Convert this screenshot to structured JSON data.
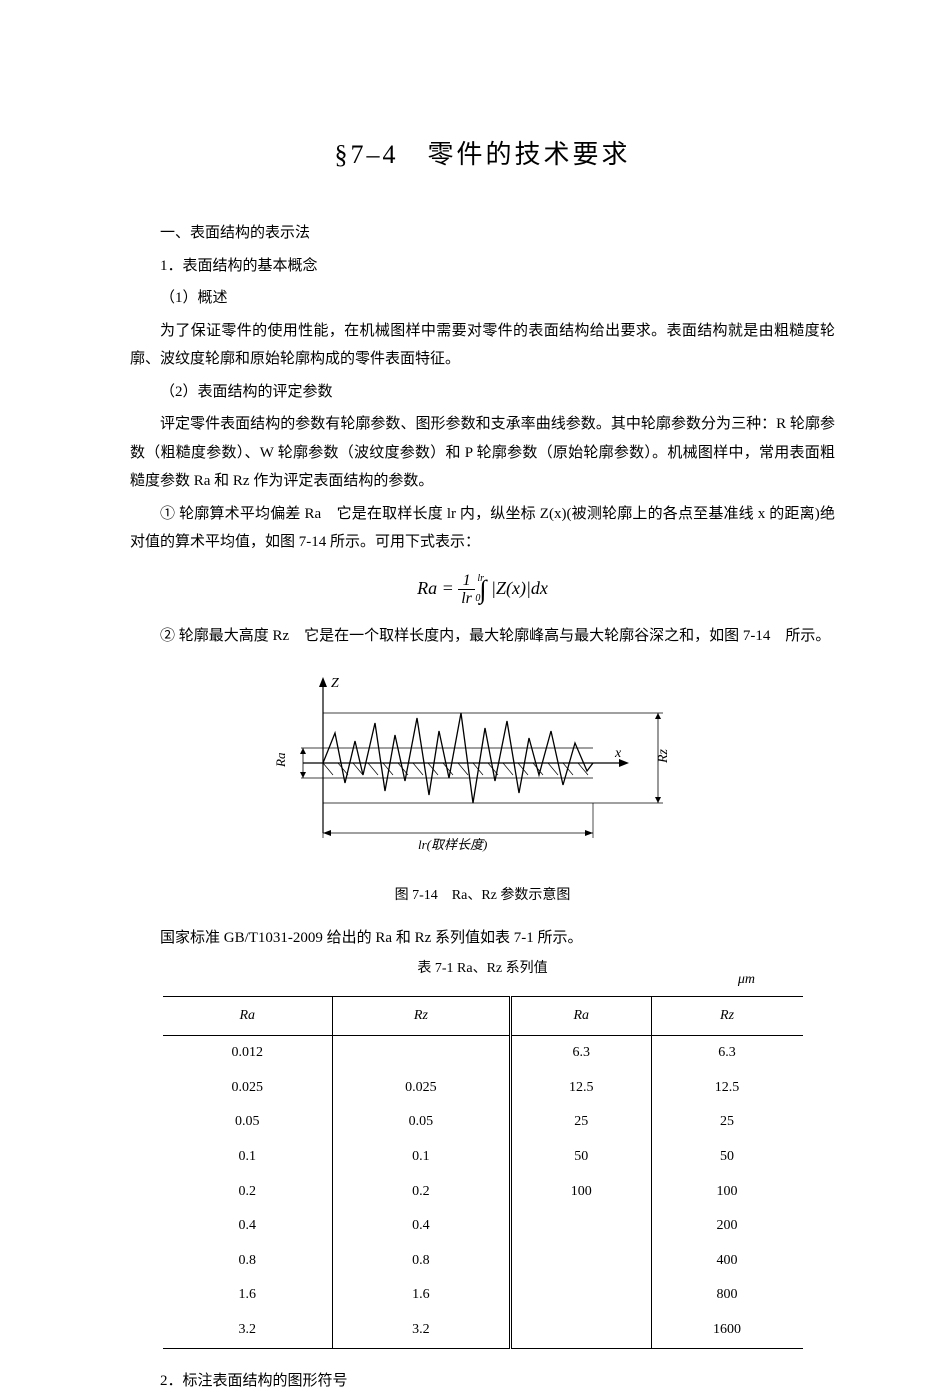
{
  "title": "§7‒4　零件的技术要求",
  "sections": {
    "h1": "一、表面结构的表示法",
    "s1": "1．表面结构的基本概念",
    "s1_1": "（1）概述",
    "p1": "为了保证零件的使用性能，在机械图样中需要对零件的表面结构给出要求。表面结构就是由粗糙度轮廓、波纹度轮廓和原始轮廓构成的零件表面特征。",
    "s1_2": "（2）表面结构的评定参数",
    "p2": "评定零件表面结构的参数有轮廓参数、图形参数和支承率曲线参数。其中轮廓参数分为三种：R 轮廓参数（粗糙度参数）、W 轮廓参数（波纹度参数）和 P 轮廓参数（原始轮廓参数）。机械图样中，常用表面粗糙度参数 Ra 和 Rz 作为评定表面结构的参数。",
    "p3": "① 轮廓算术平均偏差 Ra　它是在取样长度 lr 内，纵坐标 Z(x)(被测轮廓上的各点至基准线 x 的距离)绝对值的算术平均值，如图 7-14 所示。可用下式表示：",
    "p4": "② 轮廓最大高度 Rz　它是在一个取样长度内，最大轮廓峰高与最大轮廓谷深之和，如图 7-14　所示。",
    "fig_caption": "图 7-14　Ra、Rz 参数示意图",
    "p5": "国家标准 GB/T1031-2009 给出的 Ra 和 Rz 系列值如表 7-1 所示。",
    "table_title": "表 7-1 Ra、Rz 系列值",
    "table_unit": "μm",
    "s2": "2．标注表面结构的图形符号"
  },
  "formula": {
    "Ra": "Ra",
    "eq": "=",
    "num": "1",
    "den": "lr",
    "int_top": "lr",
    "int_bot": "0",
    "body": "|Z(x)|dx"
  },
  "diagram": {
    "z_label": "Z",
    "x_label": "x",
    "ra_label": "Ra",
    "rz_label": "Rz",
    "lr_label": "lr(取样长度)",
    "colors": {
      "line": "#000000",
      "bg": "#ffffff"
    }
  },
  "table": {
    "columns": [
      "Ra",
      "Rz",
      "Ra",
      "Rz"
    ],
    "rows": [
      [
        "0.012",
        "",
        "6.3",
        "6.3"
      ],
      [
        "0.025",
        "0.025",
        "12.5",
        "12.5"
      ],
      [
        "0.05",
        "0.05",
        "25",
        "25"
      ],
      [
        "0.1",
        "0.1",
        "50",
        "50"
      ],
      [
        "0.2",
        "0.2",
        "100",
        "100"
      ],
      [
        "0.4",
        "0.4",
        "",
        "200"
      ],
      [
        "0.8",
        "0.8",
        "",
        "400"
      ],
      [
        "1.6",
        "1.6",
        "",
        "800"
      ],
      [
        "3.2",
        "3.2",
        "",
        "1600"
      ]
    ],
    "col_widths": [
      "25%",
      "25%",
      "25%",
      "25%"
    ],
    "border_color": "#000000"
  }
}
